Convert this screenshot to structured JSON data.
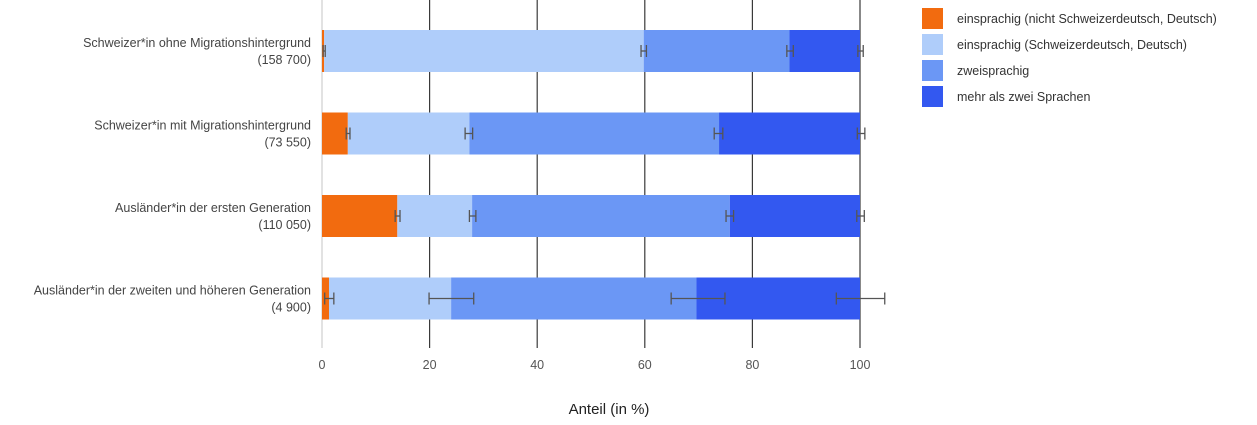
{
  "chart_data": {
    "type": "bar",
    "orientation": "horizontal",
    "stacked": true,
    "categories": [
      {
        "label": "Schweizer*in ohne Migrationshintergrund",
        "n": "(158 700)"
      },
      {
        "label": "Schweizer*in mit Migrationshintergrund",
        "n": "(73 550)"
      },
      {
        "label": "Ausländer*in der ersten Generation",
        "n": "(110 050)"
      },
      {
        "label": "Ausländer*in der zweiten und höheren Generation",
        "n": "(4 900)"
      }
    ],
    "series": [
      {
        "name": "einsprachig (nicht Schweizerdeutsch, Deutsch)",
        "color": "#f26b0f",
        "values": [
          0.4,
          4.8,
          14.0,
          1.3
        ],
        "error_low": [
          0.2,
          4.5,
          13.6,
          0.5
        ],
        "error_high": [
          0.6,
          5.2,
          14.5,
          2.2
        ]
      },
      {
        "name": "einsprachig (Schweizerdeutsch, Deutsch)",
        "color": "#afcdfa",
        "values": [
          59.4,
          22.6,
          13.9,
          22.7
        ],
        "error_low": [
          59.3,
          26.6,
          27.4,
          19.9
        ],
        "error_high": [
          60.3,
          28.0,
          28.6,
          28.2
        ]
      },
      {
        "name": "zweisprachig",
        "color": "#6b97f5",
        "values": [
          27.1,
          46.4,
          47.9,
          45.6
        ],
        "error_low": [
          86.4,
          72.9,
          75.1,
          64.9
        ],
        "error_high": [
          87.6,
          74.5,
          76.5,
          74.9
        ]
      },
      {
        "name": "mehr als zwei Sprachen",
        "color": "#3358f0",
        "values": [
          13.1,
          26.2,
          24.2,
          30.4
        ],
        "error_low": [
          99.6,
          99.5,
          99.4,
          95.6
        ],
        "error_high": [
          100.6,
          100.9,
          100.8,
          104.6
        ]
      }
    ],
    "xlabel": "Anteil (in %)",
    "xlim": [
      0,
      100
    ],
    "xticks": [
      "0",
      "20",
      "40",
      "60",
      "80",
      "100"
    ],
    "grid": true,
    "legend_position": "top-right"
  }
}
